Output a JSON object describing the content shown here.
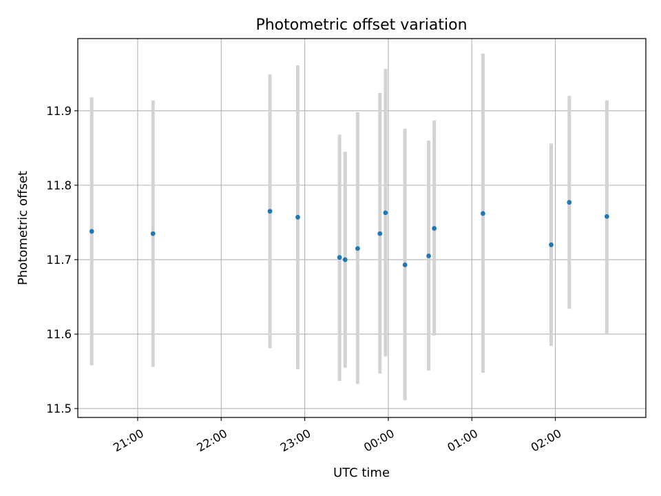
{
  "chart_data": {
    "type": "scatter",
    "title": "Photometric offset variation",
    "xlabel": "UTC time",
    "ylabel": "Photometric offset",
    "x_ticks": [
      "21:00",
      "22:00",
      "23:00",
      "00:00",
      "01:00",
      "02:00"
    ],
    "y_ticks": [
      "11.5",
      "11.6",
      "11.7",
      "11.8",
      "11.9"
    ],
    "ylim": [
      11.488,
      11.997
    ],
    "xlim": [
      "20:17",
      "03:05"
    ],
    "grid": true,
    "colors": {
      "points": "#1f77b4",
      "errorbars": "#d3d3d3",
      "grid": "#b0b0b0"
    },
    "series": [
      {
        "points": [
          {
            "x": "20:27",
            "y": 11.738,
            "ylow": 11.558,
            "yhigh": 11.918
          },
          {
            "x": "21:11",
            "y": 11.735,
            "ylow": 11.556,
            "yhigh": 11.914
          },
          {
            "x": "22:35",
            "y": 11.765,
            "ylow": 11.581,
            "yhigh": 11.949
          },
          {
            "x": "22:55",
            "y": 11.757,
            "ylow": 11.553,
            "yhigh": 11.961
          },
          {
            "x": "23:25",
            "y": 11.703,
            "ylow": 11.537,
            "yhigh": 11.868
          },
          {
            "x": "23:29",
            "y": 11.7,
            "ylow": 11.555,
            "yhigh": 11.845
          },
          {
            "x": "23:38",
            "y": 11.715,
            "ylow": 11.533,
            "yhigh": 11.898
          },
          {
            "x": "23:54",
            "y": 11.735,
            "ylow": 11.547,
            "yhigh": 11.924
          },
          {
            "x": "23:58",
            "y": 11.763,
            "ylow": 11.57,
            "yhigh": 11.956
          },
          {
            "x": "00:12",
            "y": 11.693,
            "ylow": 11.511,
            "yhigh": 11.876
          },
          {
            "x": "00:29",
            "y": 11.705,
            "ylow": 11.551,
            "yhigh": 11.86
          },
          {
            "x": "00:33",
            "y": 11.742,
            "ylow": 11.598,
            "yhigh": 11.887
          },
          {
            "x": "01:08",
            "y": 11.762,
            "ylow": 11.548,
            "yhigh": 11.977
          },
          {
            "x": "01:57",
            "y": 11.72,
            "ylow": 11.584,
            "yhigh": 11.856
          },
          {
            "x": "02:10",
            "y": 11.777,
            "ylow": 11.634,
            "yhigh": 11.92
          },
          {
            "x": "02:37",
            "y": 11.758,
            "ylow": 11.6,
            "yhigh": 11.914
          }
        ]
      }
    ]
  }
}
